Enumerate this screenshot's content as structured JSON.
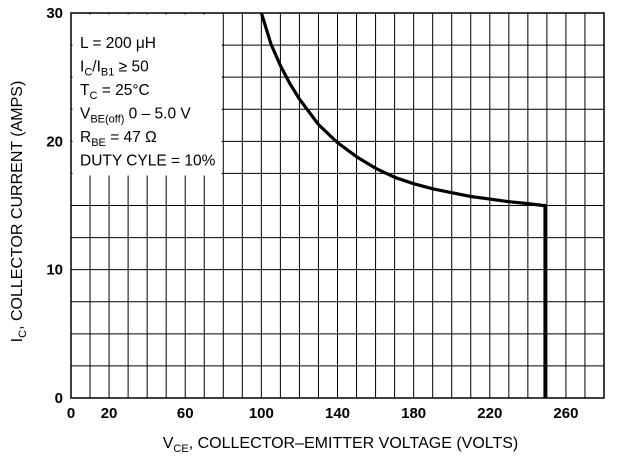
{
  "chart_data": {
    "type": "line",
    "xlabel": {
      "main": "V",
      "sub": "CE",
      "rest": ", COLLECTOR–EMITTER VOLTAGE (VOLTS)"
    },
    "ylabel": {
      "main": "I",
      "sub": "C",
      "rest": ", COLLECTOR CURRENT (AMPS)"
    },
    "xlim": [
      0,
      280
    ],
    "ylim": [
      0,
      30
    ],
    "x_ticks": [
      0,
      20,
      60,
      100,
      140,
      180,
      220,
      260
    ],
    "y_ticks": [
      0,
      10,
      20,
      30
    ],
    "x_grid": [
      0,
      10,
      20,
      30,
      40,
      50,
      60,
      70,
      80,
      90,
      100,
      110,
      120,
      130,
      140,
      150,
      160,
      170,
      180,
      190,
      200,
      210,
      220,
      230,
      240,
      250,
      260,
      270,
      280
    ],
    "y_grid": [
      0,
      2.5,
      5,
      7.5,
      10,
      12.5,
      15,
      17.5,
      20,
      22.5,
      25,
      27.5,
      30
    ],
    "grid": true,
    "legend_position": "top-left",
    "annotations": [
      {
        "parts": [
          {
            "t": "L = 200 μH"
          }
        ]
      },
      {
        "parts": [
          {
            "t": "I"
          },
          {
            "t": "C",
            "sub": true
          },
          {
            "t": "/I"
          },
          {
            "t": "B1",
            "sub": true
          },
          {
            "t": " ≥ 50"
          }
        ]
      },
      {
        "parts": [
          {
            "t": "T"
          },
          {
            "t": "C",
            "sub": true
          },
          {
            "t": " = 25°C"
          }
        ]
      },
      {
        "parts": [
          {
            "t": "V"
          },
          {
            "t": "BE(off)",
            "sub": true
          },
          {
            "t": " 0 – 5.0 V"
          }
        ]
      },
      {
        "parts": [
          {
            "t": "R"
          },
          {
            "t": "BE",
            "sub": true
          },
          {
            "t": " = 47 Ω"
          }
        ]
      },
      {
        "parts": [
          {
            "t": "DUTY CYLE = 10%"
          }
        ]
      }
    ],
    "series": [
      {
        "x": [
          100,
          105,
          110,
          115,
          120,
          130,
          140,
          150,
          160,
          170,
          180,
          190,
          200,
          210,
          220,
          230,
          240,
          248,
          249,
          249
        ],
        "y": [
          30,
          27.6,
          25.9,
          24.5,
          23.3,
          21.3,
          19.9,
          18.8,
          17.9,
          17.2,
          16.7,
          16.3,
          16.0,
          15.7,
          15.5,
          15.3,
          15.15,
          15.0,
          15.0,
          0
        ]
      }
    ],
    "color": "#000000"
  }
}
